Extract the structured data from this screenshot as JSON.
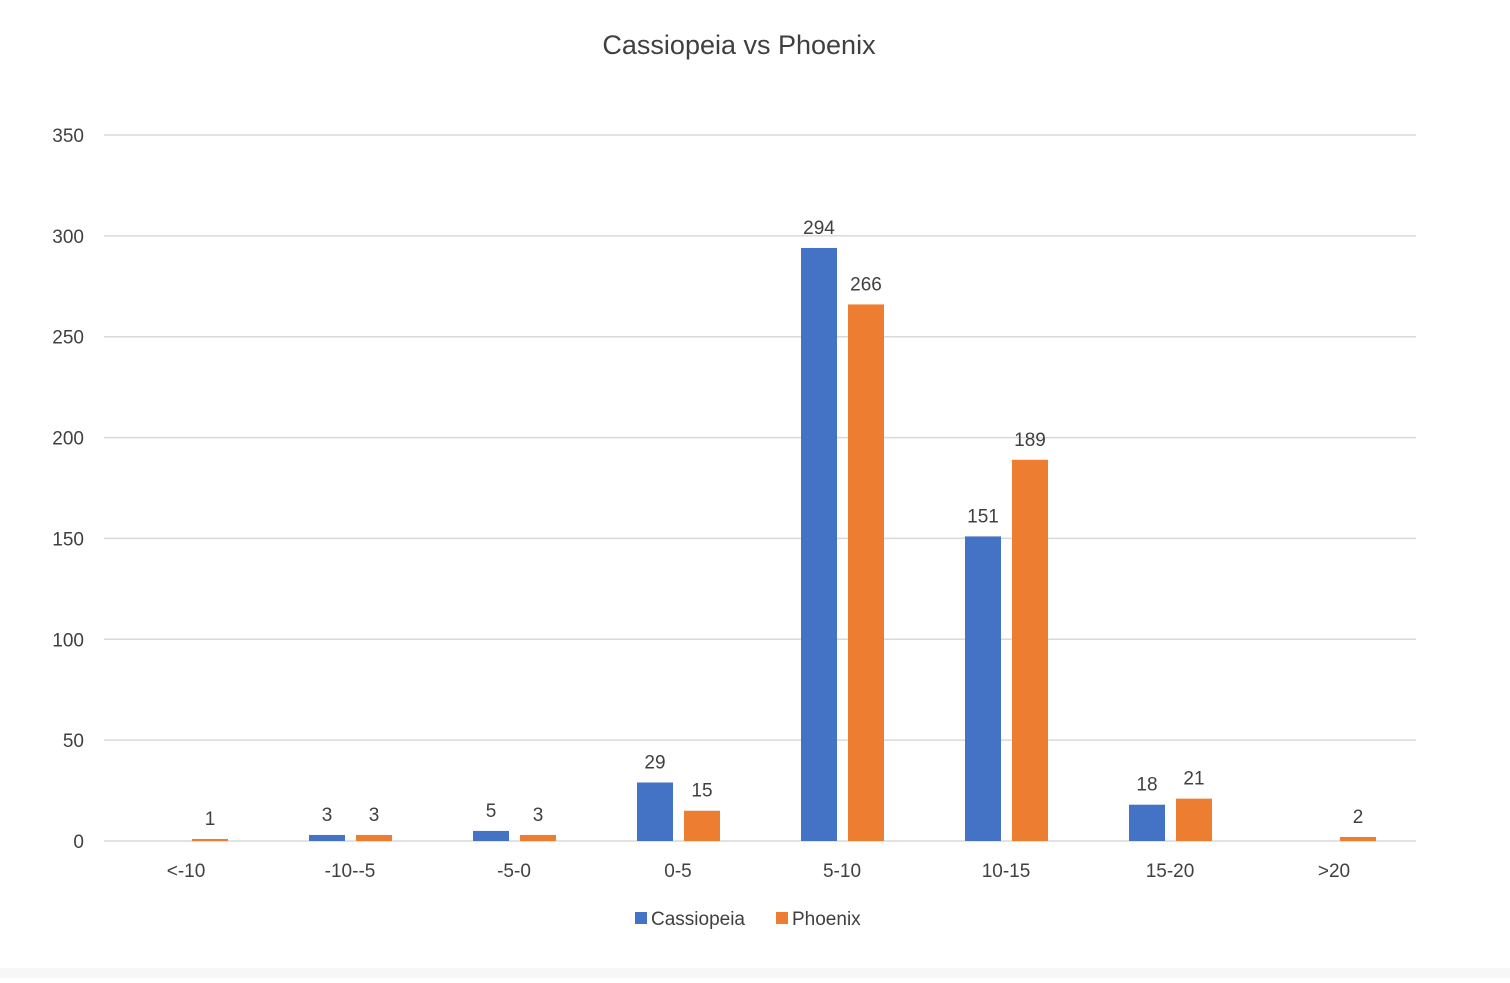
{
  "chart_data": {
    "type": "bar",
    "title": "Cassiopeia vs Phoenix",
    "xlabel": "",
    "ylabel": "",
    "categories": [
      "<-10",
      "-10--5",
      "-5-0",
      "0-5",
      "5-10",
      "10-15",
      "15-20",
      ">20"
    ],
    "series": [
      {
        "name": "Cassiopeia",
        "color": "#4472C4",
        "values": [
          null,
          3,
          5,
          29,
          294,
          151,
          18,
          null
        ]
      },
      {
        "name": "Phoenix",
        "color": "#ED7D31",
        "values": [
          1,
          3,
          3,
          15,
          266,
          189,
          21,
          2
        ]
      }
    ],
    "ylim": [
      0,
      350
    ],
    "yticks": [
      0,
      50,
      100,
      150,
      200,
      250,
      300,
      350
    ],
    "grid": true,
    "legend": "bottom",
    "data_labels": true
  }
}
